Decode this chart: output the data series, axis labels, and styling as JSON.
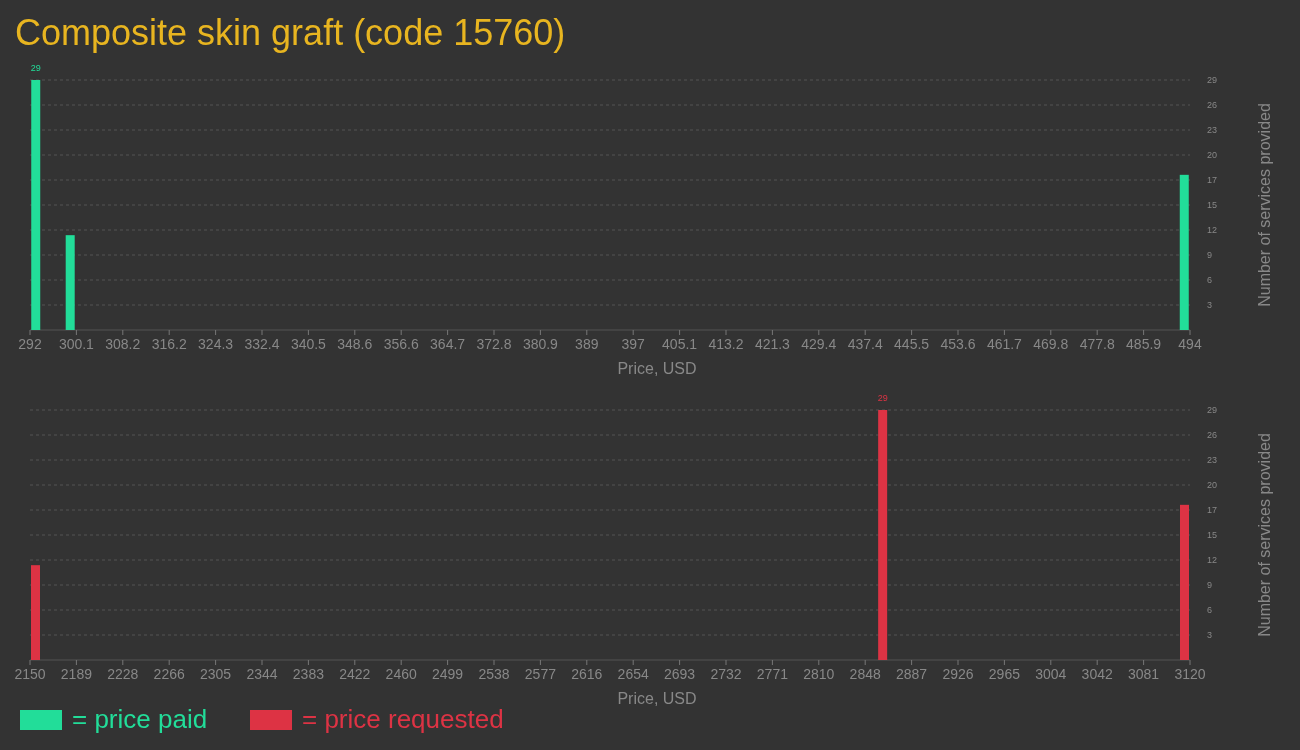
{
  "chart_data": [
    {
      "type": "bar",
      "title": "Composite skin graft (code 15760)",
      "xlabel": "Price, USD",
      "ylabel": "Number of services provided",
      "x": [
        293,
        299,
        493
      ],
      "series": [
        {
          "name": "= price paid",
          "color": "#22dd99",
          "values": [
            29,
            11,
            18
          ],
          "value_labels": [
            "29",
            null,
            null
          ]
        }
      ],
      "xlim": [
        292,
        494
      ],
      "xticks": [
        292,
        {
          "value": 300.08,
          "label": "300.1"
        },
        {
          "value": 308.16,
          "label": "308.2"
        },
        {
          "value": 316.24,
          "label": "316.2"
        },
        {
          "value": 324.32,
          "label": "324.3"
        },
        332.4,
        {
          "value": 340.48,
          "label": "340.5"
        },
        {
          "value": 348.56,
          "label": "348.6"
        },
        {
          "value": 356.64,
          "label": "356.6"
        },
        {
          "value": 364.72,
          "label": "364.7"
        },
        372.8,
        {
          "value": 380.88,
          "label": "380.9"
        },
        {
          "value": 388.96,
          "label": "389"
        },
        {
          "value": 397.04,
          "label": "397"
        },
        {
          "value": 405.12,
          "label": "405.1"
        },
        413.2,
        {
          "value": 421.28,
          "label": "421.3"
        },
        {
          "value": 429.36,
          "label": "429.4"
        },
        {
          "value": 437.44,
          "label": "437.4"
        },
        {
          "value": 445.52,
          "label": "445.5"
        },
        453.6,
        {
          "value": 461.68,
          "label": "461.7"
        },
        {
          "value": 469.76,
          "label": "469.8"
        },
        {
          "value": 477.84,
          "label": "477.8"
        },
        {
          "value": 485.92,
          "label": "485.9"
        },
        494
      ],
      "ylim": [
        0,
        29
      ],
      "yticks": [
        {
          "value": 2.9,
          "label": "3"
        },
        {
          "value": 5.8,
          "label": "6"
        },
        {
          "value": 8.7,
          "label": "9"
        },
        {
          "value": 11.6,
          "label": "12"
        },
        {
          "value": 14.5,
          "label": "15"
        },
        {
          "value": 17.4,
          "label": "17"
        },
        {
          "value": 20.3,
          "label": "20"
        },
        {
          "value": 23.2,
          "label": "23"
        },
        {
          "value": 26.1,
          "label": "26"
        },
        29
      ],
      "grid": "y",
      "legend": "bottom"
    },
    {
      "type": "bar",
      "xlabel": "Price, USD",
      "ylabel": "Number of services provided",
      "x": [
        2154.6,
        2863,
        3115.4
      ],
      "series": [
        {
          "name": "= price requested",
          "color": "#dd3344",
          "values": [
            11,
            29,
            18
          ],
          "value_labels": [
            null,
            "29",
            null
          ]
        }
      ],
      "xlim": [
        2150,
        3120
      ],
      "xticks": [
        2150,
        {
          "value": 2188.8,
          "label": "2189"
        },
        {
          "value": 2227.6,
          "label": "2228"
        },
        {
          "value": 2266.4,
          "label": "2266"
        },
        {
          "value": 2305.2,
          "label": "2305"
        },
        2344,
        {
          "value": 2382.8,
          "label": "2383"
        },
        {
          "value": 2421.6,
          "label": "2422"
        },
        {
          "value": 2460.4,
          "label": "2460"
        },
        {
          "value": 2499.2,
          "label": "2499"
        },
        2538,
        {
          "value": 2576.8,
          "label": "2577"
        },
        {
          "value": 2615.6,
          "label": "2616"
        },
        {
          "value": 2654.4,
          "label": "2654"
        },
        {
          "value": 2693.2,
          "label": "2693"
        },
        2732,
        {
          "value": 2770.8,
          "label": "2771"
        },
        {
          "value": 2809.6,
          "label": "2810"
        },
        {
          "value": 2848.4,
          "label": "2848"
        },
        {
          "value": 2887.2,
          "label": "2887"
        },
        2926,
        {
          "value": 2964.8,
          "label": "2965"
        },
        {
          "value": 3003.6,
          "label": "3004"
        },
        {
          "value": 3042.4,
          "label": "3042"
        },
        {
          "value": 3081.2,
          "label": "3081"
        },
        3120
      ],
      "ylim": [
        0,
        29
      ],
      "yticks": [
        {
          "value": 2.9,
          "label": "3"
        },
        {
          "value": 5.8,
          "label": "6"
        },
        {
          "value": 8.7,
          "label": "9"
        },
        {
          "value": 11.6,
          "label": "12"
        },
        {
          "value": 14.5,
          "label": "15"
        },
        {
          "value": 17.4,
          "label": "17"
        },
        {
          "value": 20.3,
          "label": "20"
        },
        {
          "value": 23.2,
          "label": "23"
        },
        {
          "value": 26.1,
          "label": "26"
        },
        29
      ],
      "grid": "y",
      "legend": "bottom"
    }
  ]
}
